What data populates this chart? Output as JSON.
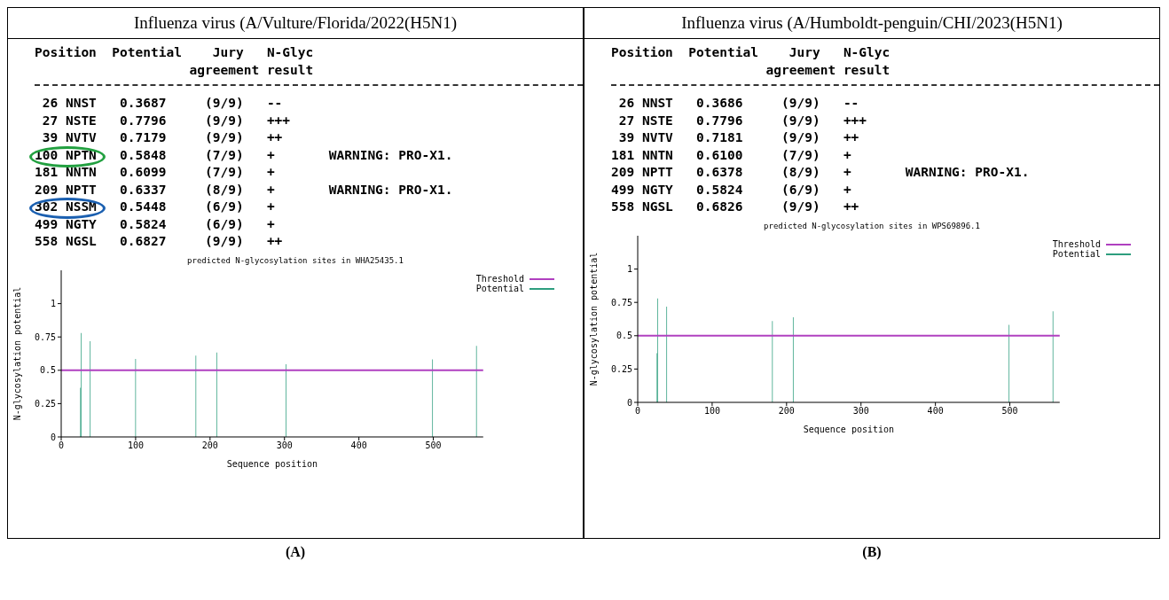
{
  "chart_data": [
    {
      "type": "other",
      "title": "Influenza virus (A/Vulture/Florida/2022(H5N1)",
      "annotations": [
        "Position  Potential    Jury   N-Glyc",
        "                    agreement result",
        " 26 NNST   0.3687     (9/9)   --",
        " 27 NSTE   0.7796     (9/9)   +++",
        " 39 NVTV   0.7179     (9/9)   ++",
        "100 NPTN   0.5848     (7/9)   +       WARNING: PRO-X1.",
        "181 NNTN   0.6099     (7/9)   +",
        "209 NPTT   0.6337     (8/9)   +       WARNING: PRO-X1.",
        "302 NSSM   0.5448     (6/9)   +",
        "499 NGTY   0.5824     (6/9)   +",
        "558 NGSL   0.6827     (9/9)   ++"
      ]
    },
    {
      "type": "bar",
      "title": "predicted N-glycosylation sites in WHA25435.1",
      "xlabel": "Sequence position",
      "ylabel": "N-glycosylation potential",
      "x": [
        26,
        27,
        39,
        100,
        181,
        209,
        302,
        499,
        558
      ],
      "series": [
        {
          "name": "Potential",
          "color": "#2e9e7e",
          "values": [
            0.3687,
            0.7796,
            0.7179,
            0.5848,
            0.6099,
            0.6337,
            0.5448,
            0.5824,
            0.6827
          ]
        }
      ],
      "xlim": [
        0,
        567
      ],
      "xticks": [
        0,
        100,
        200,
        300,
        400,
        500
      ],
      "ylim": [
        0,
        1.25
      ],
      "yticks": [
        0,
        0.25,
        0.5,
        0.75,
        1
      ],
      "ref_lines": [
        {
          "axis": "y",
          "value": 0.5,
          "label": "Threshold",
          "color": "#b040c0"
        }
      ],
      "legend": "top right",
      "annotations": [
        "(A)"
      ]
    },
    {
      "type": "other",
      "title": "Influenza virus (A/Humboldt-penguin/CHI/2023(H5N1)",
      "annotations": [
        "Position  Potential    Jury   N-Glyc",
        "                    agreement result",
        " 26 NNST   0.3686     (9/9)   --",
        " 27 NSTE   0.7796     (9/9)   +++",
        " 39 NVTV   0.7181     (9/9)   ++",
        "181 NNTN   0.6100     (7/9)   +",
        "209 NPTT   0.6378     (8/9)   +       WARNING: PRO-X1.",
        "499 NGTY   0.5824     (6/9)   +",
        "558 NGSL   0.6826     (9/9)   ++"
      ]
    },
    {
      "type": "bar",
      "title": "predicted N-glycosylation sites in WPS69896.1",
      "xlabel": "Sequence position",
      "ylabel": "N-glycosylation potential",
      "x": [
        26,
        27,
        39,
        181,
        209,
        499,
        558
      ],
      "series": [
        {
          "name": "Potential",
          "color": "#2e9e7e",
          "values": [
            0.3686,
            0.7796,
            0.7181,
            0.61,
            0.6378,
            0.5824,
            0.6826
          ]
        }
      ],
      "xlim": [
        0,
        567
      ],
      "xticks": [
        0,
        100,
        200,
        300,
        400,
        500
      ],
      "ylim": [
        0,
        1.25
      ],
      "yticks": [
        0,
        0.25,
        0.5,
        0.75,
        1
      ],
      "ref_lines": [
        {
          "axis": "y",
          "value": 0.5,
          "label": "Threshold",
          "color": "#b040c0"
        }
      ],
      "legend": "top right",
      "annotations": [
        "(B)"
      ]
    }
  ]
}
